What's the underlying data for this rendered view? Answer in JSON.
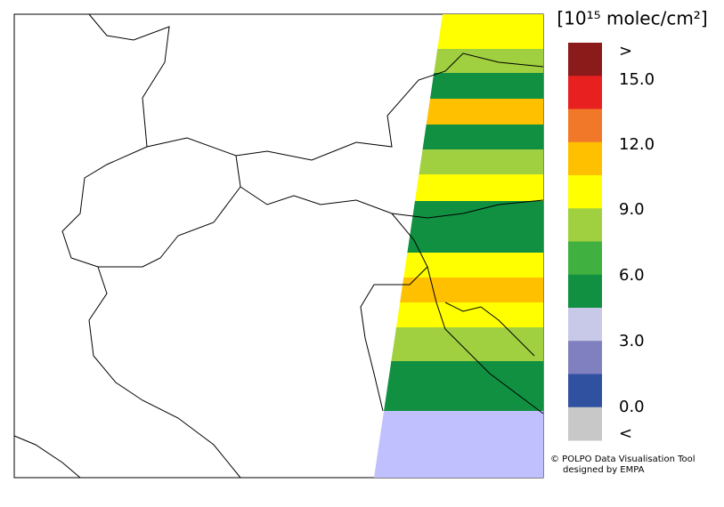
{
  "colorbar": {
    "title": "[10¹⁵ molec/cm²]",
    "colors": [
      "#8b1a1a",
      "#e82020",
      "#f07828",
      "#ffc000",
      "#ffff00",
      "#a0d040",
      "#40b040",
      "#109040",
      "#c8c8e8",
      "#8080c0",
      "#3050a0",
      "#c8c8c8"
    ],
    "labels": [
      ">",
      {
        "value": 15,
        "label": "15.0"
      },
      {
        "value": 12,
        "label": "12.0"
      },
      {
        "value": 9,
        "label": "9.0"
      },
      {
        "value": 6,
        "label": "6.0"
      },
      {
        "value": 3,
        "label": "3.0"
      },
      {
        "value": 0,
        "label": "0.0"
      },
      "<"
    ]
  },
  "credits": [
    "© POLPO Data Visualisation Tool",
    "designed by EMPA"
  ]
}
